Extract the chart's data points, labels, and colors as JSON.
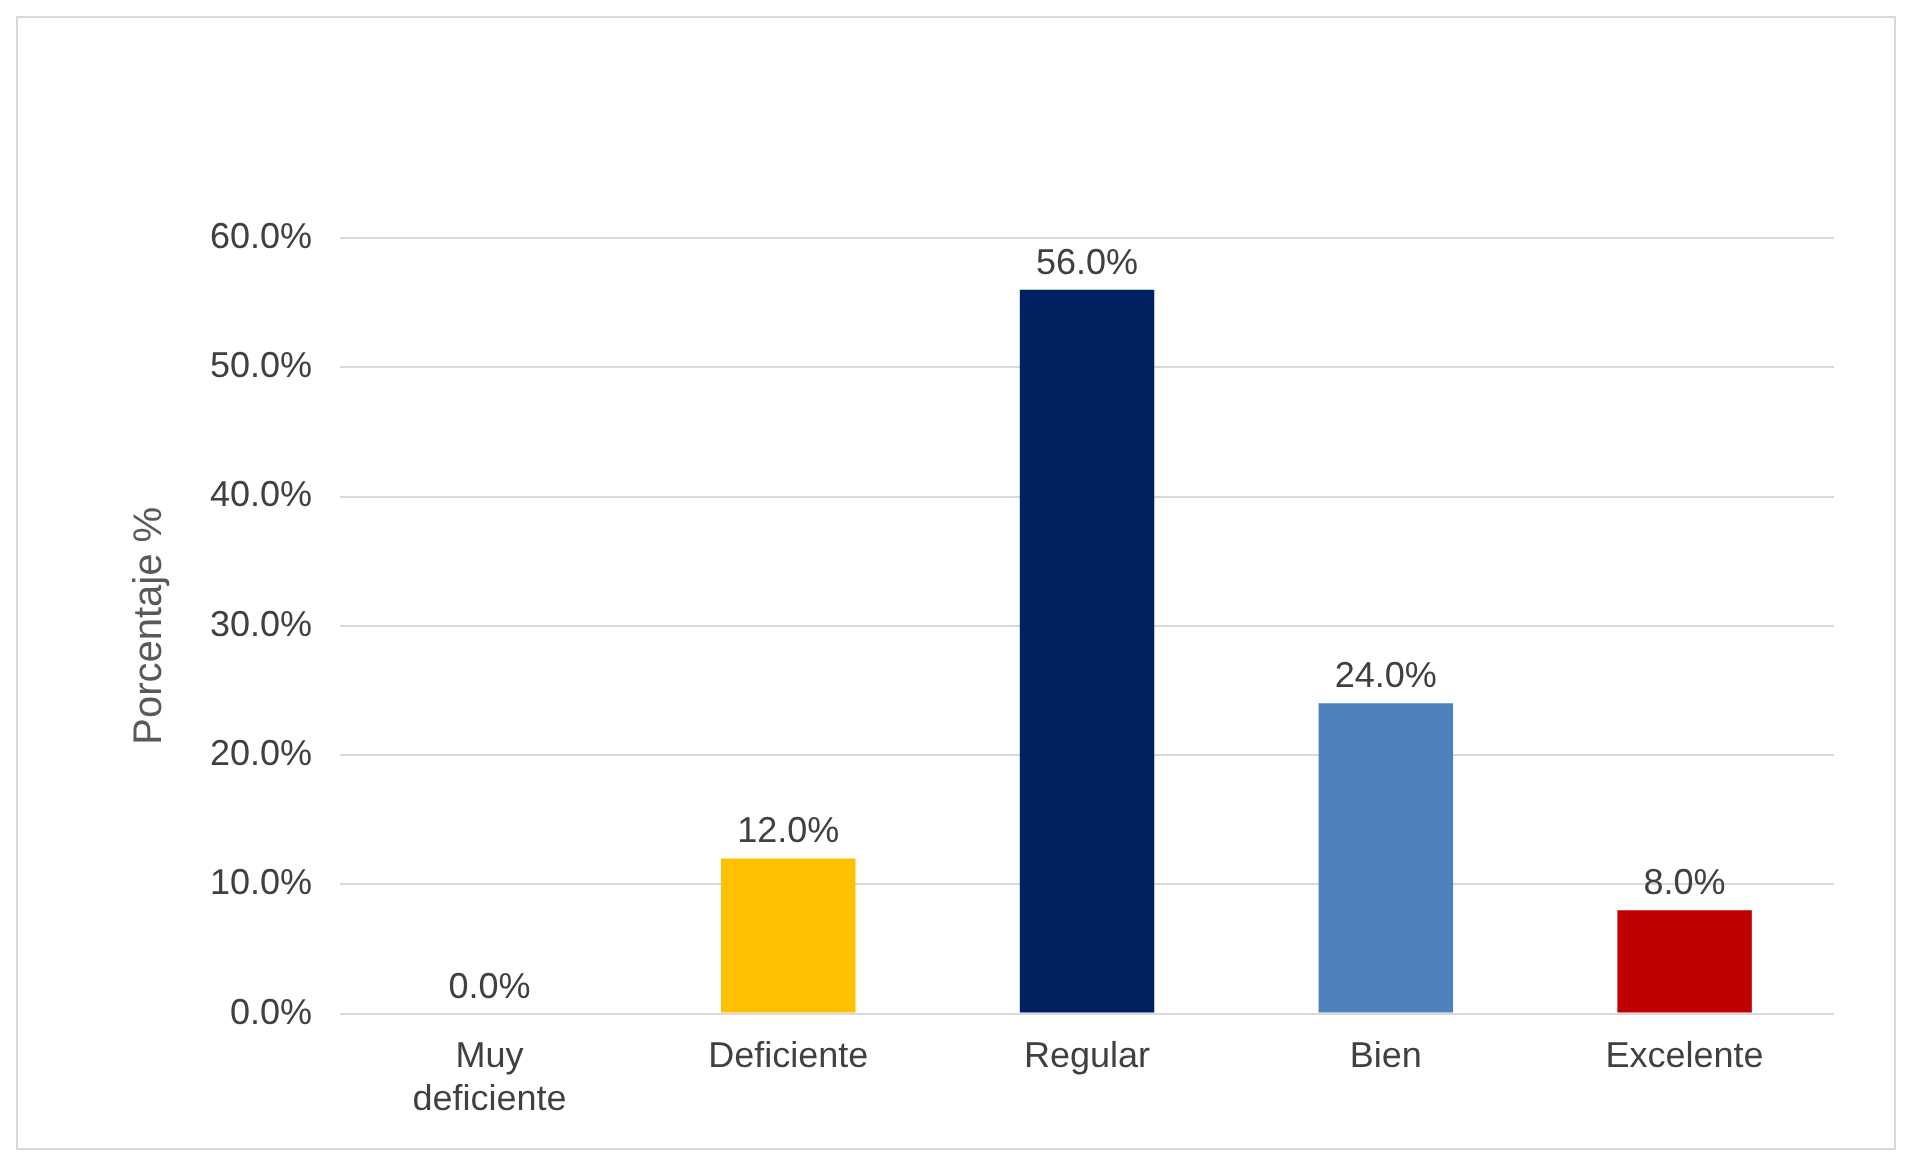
{
  "chart_data": {
    "type": "bar",
    "ylabel": "Porcentaje %",
    "categories": [
      "Muy deficiente",
      "Deficiente",
      "Regular",
      "Bien",
      "Excelente"
    ],
    "values": [
      0,
      12,
      56,
      24,
      8
    ],
    "colors": [
      "#c00000",
      "#ffc000",
      "#002060",
      "#4f81bd",
      "#c00000"
    ],
    "value_labels": [
      "0.0%",
      "12.0%",
      "56.0%",
      "24.0%",
      "8.0%"
    ],
    "ylim": [
      0,
      60
    ],
    "yticks": [
      {
        "value": 0,
        "label": "0.0%"
      },
      {
        "value": 10,
        "label": "10.0%"
      },
      {
        "value": 20,
        "label": "20.0%"
      },
      {
        "value": 30,
        "label": "30.0%"
      },
      {
        "value": 40,
        "label": "40.0%"
      },
      {
        "value": 50,
        "label": "50.0%"
      },
      {
        "value": 60,
        "label": "60.0%"
      }
    ],
    "grid": "y",
    "legend": false
  }
}
